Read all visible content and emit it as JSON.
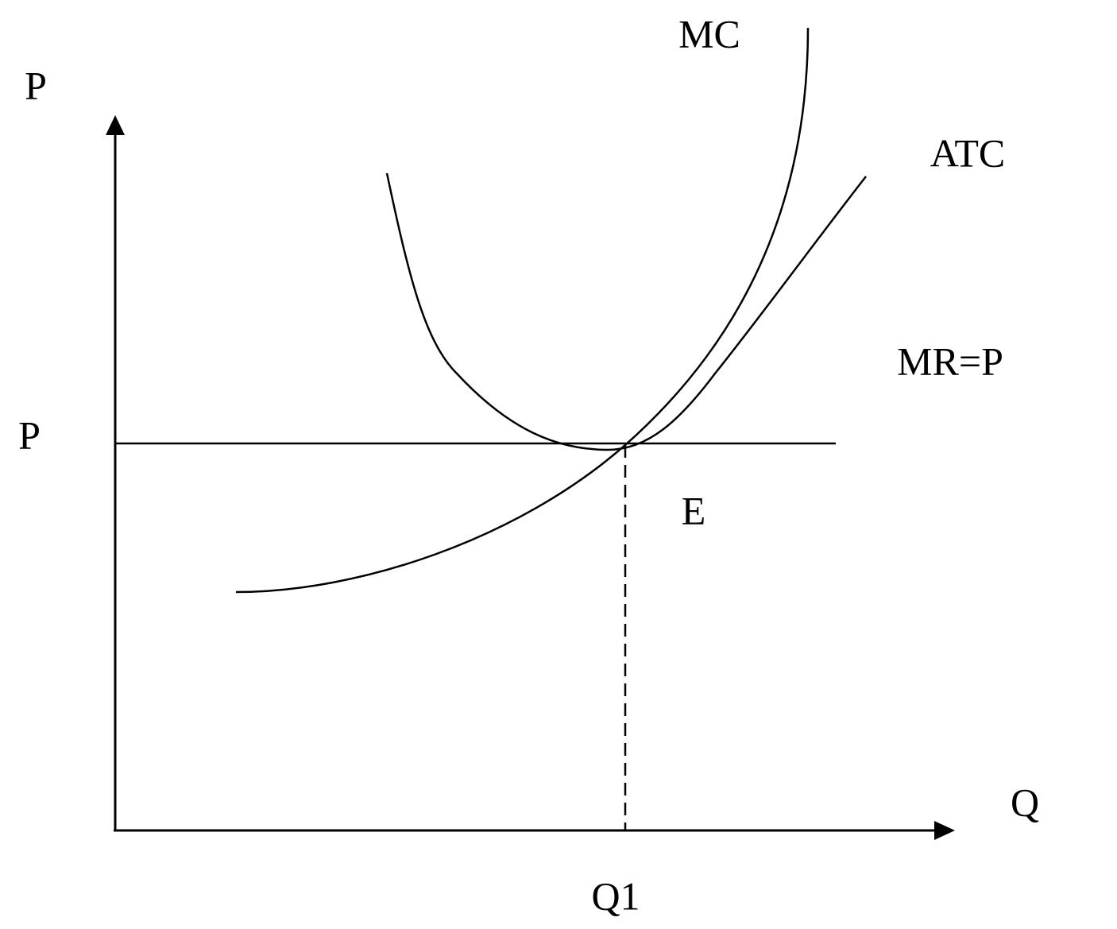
{
  "axes": {
    "y_label": "P",
    "x_label": "Q"
  },
  "labels": {
    "price": "P",
    "mc": "MC",
    "atc": "ATC",
    "mr": "MR=P",
    "equilibrium": "E",
    "quantity": "Q1"
  }
}
